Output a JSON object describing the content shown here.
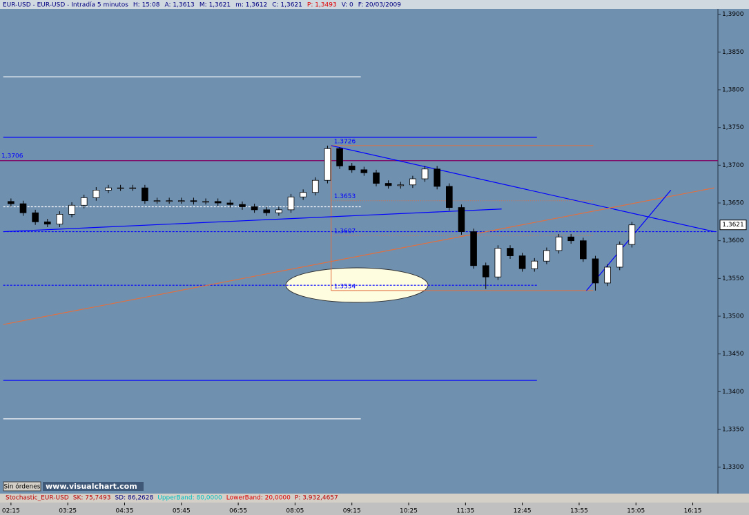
{
  "chart_data": {
    "type": "candlestick",
    "header": [
      {
        "text": "EUR-USD - EUR-USD - Intradía 5 minutos",
        "color": "#000080"
      },
      {
        "text": "H: 15:08",
        "color": "#000080"
      },
      {
        "text": "A: 1,3613",
        "color": "#000080"
      },
      {
        "text": "M: 1,3621",
        "color": "#000080"
      },
      {
        "text": "m: 1,3612",
        "color": "#000080"
      },
      {
        "text": "C: 1,3621",
        "color": "#000080"
      },
      {
        "text": "P: 1,3493",
        "color": "#e00000"
      },
      {
        "text": "V: 0",
        "color": "#000080"
      },
      {
        "text": "F: 20/03/2009",
        "color": "#000080"
      }
    ],
    "x": [
      0,
      3,
      6,
      9,
      12,
      15,
      18,
      21,
      24,
      27,
      30,
      33,
      36,
      39,
      42,
      45,
      48,
      51,
      54,
      57,
      60,
      63,
      66,
      69,
      72,
      75,
      78,
      81,
      84,
      87,
      90,
      93,
      96,
      99,
      102,
      105,
      108,
      111,
      114,
      117,
      120,
      123,
      126,
      129,
      132,
      135,
      138,
      141,
      144,
      147,
      150,
      153
    ],
    "open": [
      1.3652,
      1.3649,
      1.3637,
      1.3625,
      1.3622,
      1.3635,
      1.3647,
      1.3657,
      1.3667,
      1.367,
      1.367,
      1.367,
      1.3653,
      1.3653,
      1.3653,
      1.3653,
      1.3652,
      1.3652,
      1.365,
      1.3648,
      1.3645,
      1.3641,
      1.3637,
      1.3641,
      1.3658,
      1.3664,
      1.368,
      1.3722,
      1.3699,
      1.3694,
      1.369,
      1.3676,
      1.3673,
      1.3674,
      1.3682,
      1.3695,
      1.3672,
      1.3644,
      1.3612,
      1.3567,
      1.3552,
      1.359,
      1.358,
      1.3563,
      1.3573,
      1.3587,
      1.3605,
      1.36,
      1.3576,
      1.3544,
      1.3565,
      1.3595
    ],
    "high": [
      1.3656,
      1.3653,
      1.3641,
      1.3629,
      1.3639,
      1.3651,
      1.3661,
      1.3671,
      1.3674,
      1.3674,
      1.3674,
      1.3674,
      1.3657,
      1.3657,
      1.3657,
      1.3657,
      1.3656,
      1.3656,
      1.3654,
      1.3652,
      1.3649,
      1.3645,
      1.3645,
      1.3662,
      1.3668,
      1.3684,
      1.3726,
      1.3724,
      1.3703,
      1.3698,
      1.3694,
      1.368,
      1.3678,
      1.3686,
      1.3699,
      1.3699,
      1.3676,
      1.3648,
      1.3616,
      1.3571,
      1.3594,
      1.3594,
      1.3584,
      1.3577,
      1.3591,
      1.3609,
      1.3609,
      1.3604,
      1.358,
      1.3569,
      1.3599,
      1.3625
    ],
    "low": [
      1.3645,
      1.3633,
      1.3621,
      1.3618,
      1.3618,
      1.3631,
      1.3643,
      1.3653,
      1.3663,
      1.3666,
      1.3666,
      1.3649,
      1.3649,
      1.3649,
      1.3649,
      1.3648,
      1.3648,
      1.3646,
      1.3644,
      1.3641,
      1.3637,
      1.3633,
      1.3633,
      1.3637,
      1.3654,
      1.366,
      1.3676,
      1.3695,
      1.369,
      1.3686,
      1.3672,
      1.3669,
      1.3669,
      1.367,
      1.3678,
      1.3668,
      1.364,
      1.3608,
      1.3563,
      1.3536,
      1.3548,
      1.3576,
      1.3559,
      1.3559,
      1.3569,
      1.3583,
      1.3596,
      1.3572,
      1.3534,
      1.354,
      1.3561,
      1.3591
    ],
    "close": [
      1.3649,
      1.3637,
      1.3625,
      1.3622,
      1.3635,
      1.3647,
      1.3657,
      1.3667,
      1.367,
      1.367,
      1.367,
      1.3653,
      1.3653,
      1.3653,
      1.3653,
      1.3652,
      1.3652,
      1.365,
      1.3648,
      1.3645,
      1.3641,
      1.3637,
      1.3641,
      1.3658,
      1.3664,
      1.368,
      1.3722,
      1.3699,
      1.3694,
      1.369,
      1.3676,
      1.3673,
      1.3674,
      1.3682,
      1.3695,
      1.3672,
      1.3644,
      1.3612,
      1.3567,
      1.3552,
      1.359,
      1.358,
      1.3563,
      1.3573,
      1.3587,
      1.3605,
      1.36,
      1.3576,
      1.3544,
      1.3565,
      1.3595,
      1.3621
    ],
    "up_color": "#ffffff",
    "down_color": "#000000",
    "xlim": [
      -2.7,
      174.2
    ],
    "ylim": [
      1.3265,
      1.3907
    ],
    "yticks": [
      {
        "value": 1.39,
        "label": "1,3900"
      },
      {
        "value": 1.385,
        "label": "1,3850"
      },
      {
        "value": 1.38,
        "label": "1,3800"
      },
      {
        "value": 1.375,
        "label": "1,3750"
      },
      {
        "value": 1.37,
        "label": "1,3700"
      },
      {
        "value": 1.365,
        "label": "1,3650"
      },
      {
        "value": 1.36,
        "label": "1,3600"
      },
      {
        "value": 1.355,
        "label": "1,3550"
      },
      {
        "value": 1.35,
        "label": "1,3500"
      },
      {
        "value": 1.345,
        "label": "1,3450"
      },
      {
        "value": 1.34,
        "label": "1,3400"
      },
      {
        "value": 1.335,
        "label": "1,3350"
      },
      {
        "value": 1.33,
        "label": "1,3300"
      }
    ],
    "xticks": [
      {
        "value": 0,
        "label": "02:15"
      },
      {
        "value": 14,
        "label": "03:25"
      },
      {
        "value": 28,
        "label": "04:35"
      },
      {
        "value": 42,
        "label": "05:45"
      },
      {
        "value": 56,
        "label": "06:55"
      },
      {
        "value": 70,
        "label": "08:05"
      },
      {
        "value": 84,
        "label": "09:15"
      },
      {
        "value": 98,
        "label": "10:25"
      },
      {
        "value": 112,
        "label": "11:35"
      },
      {
        "value": 126,
        "label": "12:45"
      },
      {
        "value": 140,
        "label": "13:55"
      },
      {
        "value": 154,
        "label": "15:05"
      },
      {
        "value": 168,
        "label": "16:15"
      }
    ],
    "levels": [
      {
        "value": 1.3817,
        "from": -1.9,
        "to": 86.2,
        "color": "#ffffff",
        "dashed": false
      },
      {
        "value": 1.3737,
        "from": -1.9,
        "to": 129.6,
        "color": "#0000ff",
        "dashed": false
      },
      {
        "value": 1.3706,
        "label": "1,3706",
        "from": -2.7,
        "to": 174.2,
        "color": "#800060",
        "dashed": false
      },
      {
        "value": 1.3645,
        "from": -1.9,
        "to": 86.2,
        "color": "#ffffff",
        "dashed": true
      },
      {
        "value": 1.3612,
        "from": -1.9,
        "to": 174.2,
        "color": "#0000ff",
        "dashed": true
      },
      {
        "value": 1.3541,
        "from": -1.9,
        "to": 129.6,
        "color": "#0000ff",
        "dashed": true
      },
      {
        "value": 1.3415,
        "from": -1.9,
        "to": 129.6,
        "color": "#0000ff",
        "dashed": false
      },
      {
        "value": 1.3364,
        "from": -1.9,
        "to": 86.2,
        "color": "#ffffff",
        "dashed": false
      }
    ],
    "trendlines": [
      {
        "x": [
          -1.9,
          120.9
        ],
        "values": [
          1.3612,
          1.3642
        ],
        "color": "#0000ff"
      },
      {
        "x": [
          78.9,
          173.3
        ],
        "values": [
          1.3726,
          1.3612
        ],
        "color": "#0000ff"
      },
      {
        "x": [
          -1.9,
          173.3
        ],
        "values": [
          1.3489,
          1.367
        ],
        "color": "#e07040"
      },
      {
        "x": [
          141.8,
          162.6
        ],
        "values": [
          1.3534,
          1.3667
        ],
        "color": "#0000ff"
      }
    ],
    "fib": {
      "from": 78.9,
      "to": 143.5,
      "levels": [
        1.3726,
        1.3653,
        1.3607,
        1.3534
      ],
      "color": "#e07040",
      "label_color": "#0000ff"
    },
    "last": {
      "value": 1.3621,
      "label": "1,3621"
    },
    "button": "Sin órdenes",
    "logo": "www.visualchart.com",
    "indicator": [
      {
        "text": "Stochastic_EUR-USD",
        "color": "#c00000"
      },
      {
        "text": "SK: 75,7493",
        "color": "#c00000"
      },
      {
        "text": "SD: 86,2628",
        "color": "#000080"
      },
      {
        "text": "UpperBand: 80,0000",
        "color": "#00c0c0"
      },
      {
        "text": "LowerBand: 20,0000",
        "color": "#e00000"
      },
      {
        "text": "P: 3.932,4657",
        "color": "#c00000"
      }
    ]
  }
}
